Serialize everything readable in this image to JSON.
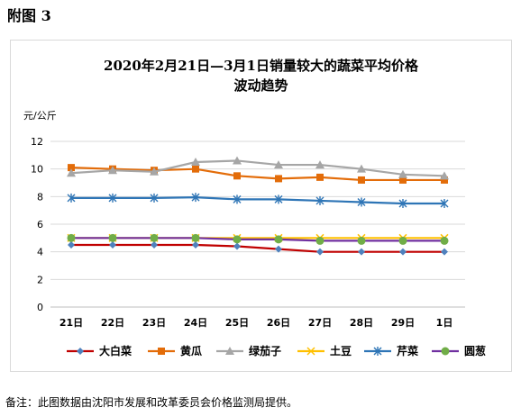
{
  "figure_label": "附图 3",
  "footnote": "备注：此图数据由沈阳市发展和改革委员会价格监测局提供。",
  "chart_data": {
    "type": "line",
    "title_line1": "2020年2月21日—3月1日销量较大的蔬菜平均价格",
    "title_line2": "波动趋势",
    "ylabel": "元/公斤",
    "xlabel": "",
    "categories": [
      "21日",
      "22日",
      "23日",
      "24日",
      "25日",
      "26日",
      "27日",
      "28日",
      "29日",
      "1日"
    ],
    "ylim": [
      0,
      12
    ],
    "yticks": [
      0,
      2,
      4,
      6,
      8,
      10,
      12
    ],
    "grid": true,
    "legend_position": "bottom",
    "series": [
      {
        "name": "大白菜",
        "color": "#c00000",
        "marker": "diamond",
        "marker_color": "#4f81bd",
        "values": [
          4.5,
          4.5,
          4.5,
          4.5,
          4.4,
          4.2,
          4.0,
          4.0,
          4.0,
          4.0
        ]
      },
      {
        "name": "黄瓜",
        "color": "#e36c09",
        "marker": "square",
        "marker_color": "#e36c09",
        "values": [
          10.1,
          10.0,
          9.9,
          10.0,
          9.5,
          9.3,
          9.4,
          9.2,
          9.2,
          9.2
        ]
      },
      {
        "name": "绿茄子",
        "color": "#a6a6a6",
        "marker": "triangle",
        "marker_color": "#a6a6a6",
        "values": [
          9.7,
          9.9,
          9.8,
          10.5,
          10.6,
          10.3,
          10.3,
          10.0,
          9.6,
          9.5
        ]
      },
      {
        "name": "土豆",
        "color": "#ffc000",
        "marker": "x",
        "marker_color": "#ffc000",
        "values": [
          5.0,
          5.0,
          5.0,
          5.0,
          5.0,
          5.0,
          5.0,
          5.0,
          5.0,
          5.0
        ]
      },
      {
        "name": "芹菜",
        "color": "#2e75b6",
        "marker": "star",
        "marker_color": "#2e75b6",
        "values": [
          7.9,
          7.9,
          7.9,
          7.95,
          7.8,
          7.8,
          7.7,
          7.6,
          7.5,
          7.5
        ]
      },
      {
        "name": "圆葱",
        "color": "#7030a0",
        "marker": "circle",
        "marker_color": "#70ad47",
        "values": [
          5.0,
          5.0,
          5.0,
          5.0,
          4.9,
          4.9,
          4.8,
          4.8,
          4.8,
          4.8
        ]
      }
    ]
  }
}
